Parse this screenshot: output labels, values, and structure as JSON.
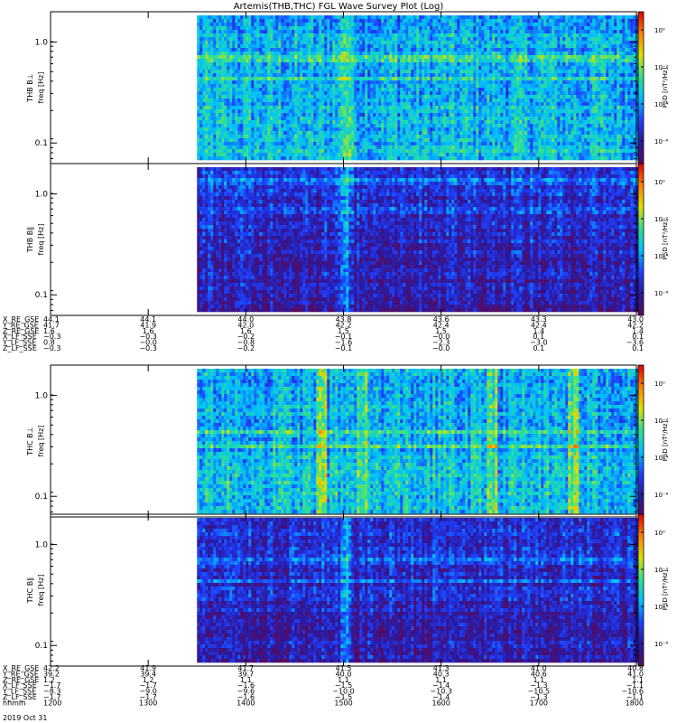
{
  "title": "Artemis(THB,THC) FGL Wave Survey Plot (Log)",
  "chart_data": {
    "type": "heatmap",
    "title": "Artemis(THB,THC) FGL Wave Survey Plot (Log)",
    "x_scale": "time",
    "y_scale": "log",
    "y_range_hz": [
      0.0625,
      2.0
    ],
    "y_ticks": [
      "1.0",
      "0.1"
    ],
    "colorbar": {
      "label": "PSD [nT²/Hz]",
      "scale": "log",
      "ticks": [
        "10⁰",
        "10⁻²",
        "10⁻⁴",
        "10⁻⁶"
      ],
      "colormap": [
        "#5a0a5a",
        "#2a1aa0",
        "#1f40ff",
        "#00c0ff",
        "#30e090",
        "#e0e000",
        "#ff8000",
        "#e00000"
      ]
    },
    "panels": [
      {
        "probe": "THB",
        "ylabel": "THB B⊥",
        "yunit": "freq [Hz]",
        "power_level": "high",
        "bright_bands_hz": [
          0.7,
          0.45
        ],
        "bright_times": [
          "1500"
        ]
      },
      {
        "probe": "THB",
        "ylabel": "THB B∥",
        "yunit": "freq [Hz]",
        "power_level": "low",
        "bright_bands_hz": [
          1.4,
          0.7
        ],
        "bright_times": [
          "1500"
        ]
      },
      {
        "probe": "THC",
        "ylabel": "THC B⊥",
        "yunit": "freq [Hz]",
        "power_level": "high",
        "bright_bands_hz": [
          0.45,
          0.33
        ],
        "bright_times": [
          "1445",
          "1510",
          "1630",
          "1720"
        ]
      },
      {
        "probe": "THC",
        "ylabel": "THC B∥",
        "yunit": "freq [Hz]",
        "power_level": "low",
        "bright_bands_hz": [
          0.7,
          0.45
        ],
        "bright_times": [
          "1500"
        ]
      }
    ],
    "ephemeris": [
      {
        "probe": "THB",
        "rows": [
          {
            "label": "X_RE_GSE",
            "values": [
              "44.1",
              "44.1",
              "44.0",
              "43.8",
              "43.6",
              "43.3",
              "43.0"
            ]
          },
          {
            "label": "Y_RE_GSE",
            "values": [
              "41.7",
              "41.9",
              "42.0",
              "42.2",
              "42.4",
              "42.4",
              "42.2"
            ]
          },
          {
            "label": "Z_RE_GSE",
            "values": [
              "1.6",
              "1.6",
              "1.6",
              "1.5",
              "1.5",
              "1.4",
              "1.4"
            ]
          },
          {
            "label": "X_LF_SSE",
            "values": [
              "−0.3",
              "−0.3",
              "−0.2",
              "−0.1",
              "−0.0",
              "0.1",
              "0.1"
            ]
          },
          {
            "label": "Y_LF_SSE",
            "values": [
              "0.8",
              "−0.0",
              "−0.8",
              "−1.6",
              "−2.3",
              "−3.0",
              "−3.6"
            ]
          },
          {
            "label": "Z_LF_SSE",
            "values": [
              "−0.3",
              "−0.3",
              "−0.2",
              "−0.1",
              "−0.0",
              "0.1",
              "0.1"
            ]
          }
        ]
      },
      {
        "probe": "THC",
        "rows": [
          {
            "label": "X_RE_GSE",
            "values": [
              "42.2",
              "41.9",
              "41.7",
              "41.5",
              "41.3",
              "41.0",
              "40.8"
            ]
          },
          {
            "label": "Y_RE_GSE",
            "values": [
              "39.2",
              "39.4",
              "39.7",
              "40.0",
              "40.3",
              "40.6",
              "41.0"
            ]
          },
          {
            "label": "Z_RE_GSE",
            "values": [
              "1.2",
              "1.2",
              "1.1",
              "1.1",
              "1.1",
              "1.1",
              "1.1"
            ]
          },
          {
            "label": "X_LF_SSE",
            "values": [
              "−1.7",
              "−1.7",
              "−1.6",
              "−1.5",
              "−1.4",
              "−1.3",
              "−1.1"
            ]
          },
          {
            "label": "Y_LF_SSE",
            "values": [
              "−8.3",
              "−9.0",
              "−9.6",
              "−10.0",
              "−10.3",
              "−10.5",
              "−10.6"
            ]
          },
          {
            "label": "Z_LF_SSE",
            "values": [
              "−1.7",
              "−1.7",
              "−1.6",
              "−1.5",
              "−1.4",
              "−1.3",
              "−1.1"
            ]
          },
          {
            "label": "hhmm",
            "values": [
              "1200",
              "1300",
              "1400",
              "1500",
              "1600",
              "1700",
              "1800"
            ]
          }
        ]
      }
    ],
    "date_label": "2019 Oct 31",
    "x_range": [
      "1200",
      "1800"
    ],
    "data_start": "1330"
  }
}
